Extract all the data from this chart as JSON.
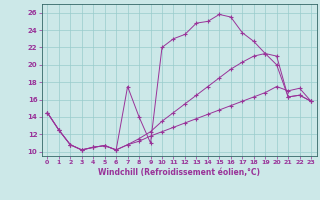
{
  "xlabel": "Windchill (Refroidissement éolien,°C)",
  "bg_color": "#cce8e8",
  "grid_color": "#99cccc",
  "line_color": "#993399",
  "spine_color": "#336666",
  "tick_color": "#993399",
  "xlim": [
    -0.5,
    23.5
  ],
  "ylim": [
    9.5,
    27
  ],
  "xticks": [
    0,
    1,
    2,
    3,
    4,
    5,
    6,
    7,
    8,
    9,
    10,
    11,
    12,
    13,
    14,
    15,
    16,
    17,
    18,
    19,
    20,
    21,
    22,
    23
  ],
  "yticks": [
    10,
    12,
    14,
    16,
    18,
    20,
    22,
    24,
    26
  ],
  "line1_x": [
    0,
    1,
    2,
    3,
    4,
    5,
    6,
    7,
    8,
    9,
    10,
    11,
    12,
    13,
    14,
    15,
    16,
    17,
    18,
    19,
    20,
    21,
    22,
    23
  ],
  "line1_y": [
    14.5,
    12.5,
    10.8,
    10.2,
    10.5,
    10.7,
    10.2,
    17.5,
    14.0,
    11.0,
    22.0,
    23.0,
    23.5,
    24.8,
    25.0,
    25.8,
    25.5,
    23.7,
    22.7,
    21.3,
    20.0,
    16.3,
    16.5,
    15.8
  ],
  "line2_x": [
    0,
    1,
    2,
    3,
    4,
    5,
    6,
    7,
    8,
    9,
    10,
    11,
    12,
    13,
    14,
    15,
    16,
    17,
    18,
    19,
    20,
    21,
    22,
    23
  ],
  "line2_y": [
    14.5,
    12.5,
    10.8,
    10.2,
    10.5,
    10.7,
    10.2,
    10.8,
    11.5,
    12.3,
    13.5,
    14.5,
    15.5,
    16.5,
    17.5,
    18.5,
    19.5,
    20.3,
    21.0,
    21.3,
    21.0,
    16.3,
    16.5,
    15.8
  ],
  "line3_x": [
    0,
    1,
    2,
    3,
    4,
    5,
    6,
    7,
    8,
    9,
    10,
    11,
    12,
    13,
    14,
    15,
    16,
    17,
    18,
    19,
    20,
    21,
    22,
    23
  ],
  "line3_y": [
    14.5,
    12.5,
    10.8,
    10.2,
    10.5,
    10.7,
    10.2,
    10.8,
    11.2,
    11.8,
    12.3,
    12.8,
    13.3,
    13.8,
    14.3,
    14.8,
    15.3,
    15.8,
    16.3,
    16.8,
    17.5,
    17.0,
    17.3,
    15.8
  ]
}
